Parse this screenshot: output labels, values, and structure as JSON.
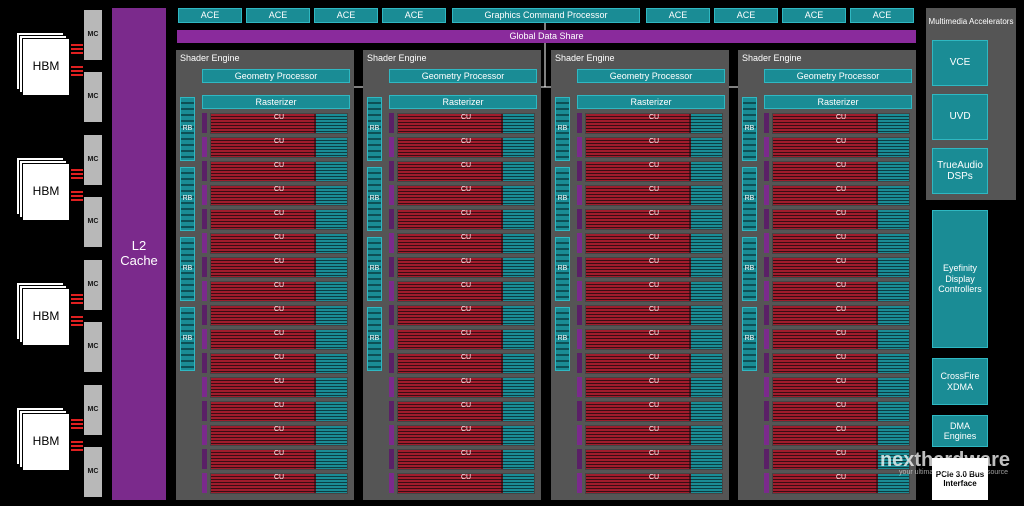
{
  "memory": {
    "stacks": [
      {
        "label": "HBM",
        "controllers": [
          "MC",
          "MC"
        ]
      },
      {
        "label": "HBM",
        "controllers": [
          "MC",
          "MC"
        ]
      },
      {
        "label": "HBM",
        "controllers": [
          "MC",
          "MC"
        ]
      },
      {
        "label": "HBM",
        "controllers": [
          "MC",
          "MC"
        ]
      }
    ]
  },
  "l2_cache": "L2 Cache",
  "command": {
    "ace_left": [
      "ACE",
      "ACE",
      "ACE",
      "ACE"
    ],
    "processor": "Graphics Command Processor",
    "ace_right": [
      "ACE",
      "ACE",
      "ACE",
      "ACE"
    ]
  },
  "global_data_share": "Global Data Share",
  "shader_engines": [
    {
      "title": "Shader Engine",
      "geometry_processor": "Geometry Processor",
      "rasterizer": "Rasterizer",
      "render_backends": [
        "RB",
        "RB",
        "RB",
        "RB"
      ],
      "compute_units": [
        "CU",
        "CU",
        "CU",
        "CU",
        "CU",
        "CU",
        "CU",
        "CU",
        "CU",
        "CU",
        "CU",
        "CU",
        "CU",
        "CU",
        "CU",
        "CU"
      ]
    },
    {
      "title": "Shader Engine",
      "geometry_processor": "Geometry Processor",
      "rasterizer": "Rasterizer",
      "render_backends": [
        "RB",
        "RB",
        "RB",
        "RB"
      ],
      "compute_units": [
        "CU",
        "CU",
        "CU",
        "CU",
        "CU",
        "CU",
        "CU",
        "CU",
        "CU",
        "CU",
        "CU",
        "CU",
        "CU",
        "CU",
        "CU",
        "CU"
      ]
    },
    {
      "title": "Shader Engine",
      "geometry_processor": "Geometry Processor",
      "rasterizer": "Rasterizer",
      "render_backends": [
        "RB",
        "RB",
        "RB",
        "RB"
      ],
      "compute_units": [
        "CU",
        "CU",
        "CU",
        "CU",
        "CU",
        "CU",
        "CU",
        "CU",
        "CU",
        "CU",
        "CU",
        "CU",
        "CU",
        "CU",
        "CU",
        "CU"
      ]
    },
    {
      "title": "Shader Engine",
      "geometry_processor": "Geometry Processor",
      "rasterizer": "Rasterizer",
      "render_backends": [
        "RB",
        "RB",
        "RB",
        "RB"
      ],
      "compute_units": [
        "CU",
        "CU",
        "CU",
        "CU",
        "CU",
        "CU",
        "CU",
        "CU",
        "CU",
        "CU",
        "CU",
        "CU",
        "CU",
        "CU",
        "CU",
        "CU"
      ]
    }
  ],
  "multimedia": {
    "title": "Multimedia Accelerators",
    "blocks": [
      "VCE",
      "UVD",
      "TrueAudio DSPs"
    ]
  },
  "io": [
    "Eyefinity Display Controllers",
    "CrossFire XDMA",
    "DMA Engines",
    "PCIe 3.0 Bus Interface"
  ],
  "watermark": {
    "brand": "nexthardware",
    "tagline": "your ultimate professional resource"
  }
}
